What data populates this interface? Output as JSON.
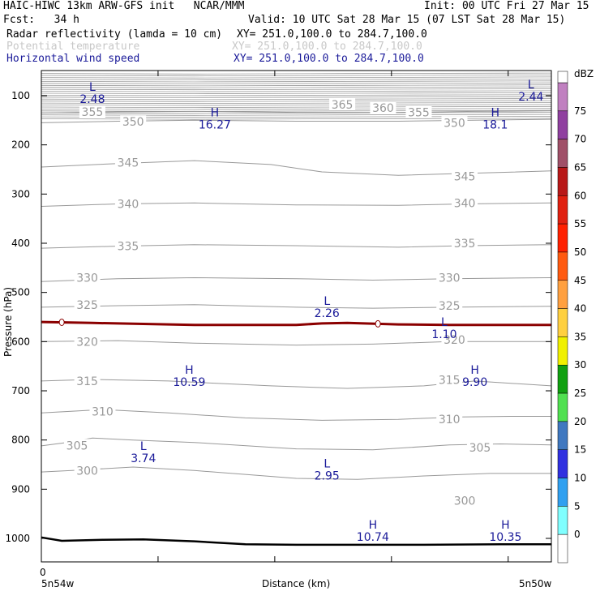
{
  "header": {
    "line1_left": "HAIC-HIWC 13km ARW-GFS init   NCAR/MMM",
    "line1_right": "Init: 00 UTC Fri 27 Mar 15",
    "line2_left": "Fcst:   34 h",
    "line2_right": "Valid: 10 UTC Sat 28 Mar 15 (07 LST Sat 28 Mar 15)",
    "field1_name": "Radar reflectivity (lamda = 10 cm)",
    "field1_xy": "XY= 251.0,100.0 to 284.7,100.0",
    "field2_name": "Potential temperature",
    "field2_xy": "XY= 251.0,100.0 to 284.7,100.0",
    "field3_name": "Horizontal wind speed",
    "field3_xy": "XY= 251.0,100.0 to 284.7,100.0"
  },
  "colors": {
    "theta_contour": "#999999",
    "wind_label": "#1a1a99",
    "freezing_line": "#8b0000",
    "terrain": "#000000"
  },
  "chart_data": {
    "type": "contour",
    "xlabel": "Distance (km)",
    "ylabel": "Pressure (hPa)",
    "x_start_label": "5n54w",
    "x_end_label": "5n50w",
    "x_zero_label": "0",
    "y_ticks": [
      100,
      200,
      300,
      400,
      500,
      600,
      700,
      800,
      900,
      1000
    ],
    "ylim": [
      50,
      1050
    ],
    "xlim": [
      0,
      1
    ],
    "theta_contours": [
      {
        "value": "300",
        "points": [
          [
            0.0,
            865
          ],
          [
            0.06,
            862
          ],
          [
            0.18,
            855
          ],
          [
            0.3,
            862
          ],
          [
            0.4,
            870
          ],
          [
            0.5,
            878
          ],
          [
            0.62,
            880
          ],
          [
            0.75,
            873
          ],
          [
            0.88,
            868
          ],
          [
            1.0,
            868
          ]
        ],
        "labels": [
          [
            0.09,
            862
          ]
        ]
      },
      {
        "value": "300",
        "points": [],
        "labels": [
          [
            0.83,
            923
          ]
        ]
      },
      {
        "value": "305",
        "points": [
          [
            0.0,
            812
          ],
          [
            0.05,
            805
          ],
          [
            0.1,
            796
          ],
          [
            0.18,
            800
          ],
          [
            0.3,
            805
          ],
          [
            0.5,
            818
          ],
          [
            0.65,
            820
          ],
          [
            0.8,
            810
          ],
          [
            0.9,
            808
          ],
          [
            1.0,
            810
          ]
        ],
        "labels": [
          [
            0.07,
            811
          ],
          [
            0.86,
            815
          ]
        ]
      },
      {
        "value": "310",
        "points": [
          [
            0.0,
            745
          ],
          [
            0.12,
            738
          ],
          [
            0.25,
            745
          ],
          [
            0.4,
            755
          ],
          [
            0.55,
            760
          ],
          [
            0.7,
            758
          ],
          [
            0.82,
            753
          ],
          [
            0.92,
            752
          ],
          [
            1.0,
            752
          ]
        ],
        "labels": [
          [
            0.12,
            742
          ],
          [
            0.8,
            758
          ]
        ]
      },
      {
        "value": "315",
        "points": [
          [
            0.0,
            680
          ],
          [
            0.1,
            677
          ],
          [
            0.25,
            680
          ],
          [
            0.45,
            690
          ],
          [
            0.6,
            695
          ],
          [
            0.75,
            690
          ],
          [
            0.85,
            680
          ],
          [
            1.0,
            690
          ]
        ],
        "labels": [
          [
            0.09,
            680
          ],
          [
            0.8,
            678
          ]
        ]
      },
      {
        "value": "320",
        "points": [
          [
            0.0,
            600
          ],
          [
            0.15,
            598
          ],
          [
            0.3,
            603
          ],
          [
            0.5,
            607
          ],
          [
            0.65,
            605
          ],
          [
            0.8,
            600
          ],
          [
            1.0,
            600
          ]
        ],
        "labels": [
          [
            0.09,
            600
          ],
          [
            0.81,
            596
          ]
        ]
      },
      {
        "value": "325",
        "points": [
          [
            0.0,
            530
          ],
          [
            0.15,
            527
          ],
          [
            0.3,
            525
          ],
          [
            0.5,
            530
          ],
          [
            0.65,
            532
          ],
          [
            0.8,
            530
          ],
          [
            1.0,
            528
          ]
        ],
        "labels": [
          [
            0.09,
            525
          ],
          [
            0.8,
            527
          ]
        ]
      },
      {
        "value": "330",
        "points": [
          [
            0.0,
            478
          ],
          [
            0.15,
            472
          ],
          [
            0.3,
            470
          ],
          [
            0.5,
            472
          ],
          [
            0.65,
            475
          ],
          [
            0.8,
            472
          ],
          [
            1.0,
            470
          ]
        ],
        "labels": [
          [
            0.09,
            470
          ],
          [
            0.8,
            470
          ]
        ]
      },
      {
        "value": "335",
        "points": [
          [
            0.0,
            410
          ],
          [
            0.15,
            406
          ],
          [
            0.3,
            403
          ],
          [
            0.5,
            405
          ],
          [
            0.7,
            408
          ],
          [
            0.83,
            405
          ],
          [
            1.0,
            403
          ]
        ],
        "labels": [
          [
            0.17,
            406
          ],
          [
            0.83,
            400
          ]
        ]
      },
      {
        "value": "340",
        "points": [
          [
            0.0,
            325
          ],
          [
            0.15,
            320
          ],
          [
            0.3,
            318
          ],
          [
            0.5,
            322
          ],
          [
            0.7,
            323
          ],
          [
            0.83,
            320
          ],
          [
            1.0,
            318
          ]
        ],
        "labels": [
          [
            0.17,
            320
          ],
          [
            0.83,
            318
          ]
        ]
      },
      {
        "value": "345",
        "points": [
          [
            0.0,
            245
          ],
          [
            0.15,
            238
          ],
          [
            0.3,
            232
          ],
          [
            0.45,
            240
          ],
          [
            0.55,
            255
          ],
          [
            0.7,
            262
          ],
          [
            0.83,
            258
          ],
          [
            1.0,
            253
          ]
        ],
        "labels": [
          [
            0.17,
            236
          ],
          [
            0.83,
            264
          ]
        ]
      },
      {
        "value": "350",
        "points": [
          [
            0.0,
            155
          ],
          [
            0.15,
            152
          ],
          [
            0.3,
            150
          ],
          [
            0.5,
            152
          ],
          [
            0.7,
            152
          ],
          [
            0.85,
            150
          ],
          [
            1.0,
            148
          ]
        ],
        "labels": [
          [
            0.18,
            153
          ],
          [
            0.81,
            155
          ]
        ]
      },
      {
        "value": "355",
        "points": [
          [
            0.0,
            135
          ],
          [
            0.15,
            133
          ],
          [
            0.3,
            132
          ],
          [
            0.5,
            134
          ],
          [
            0.7,
            134
          ],
          [
            0.85,
            132
          ],
          [
            1.0,
            131
          ]
        ],
        "labels": [
          [
            0.1,
            133
          ],
          [
            0.74,
            134
          ]
        ]
      },
      {
        "value": "360",
        "points": [],
        "labels": [
          [
            0.67,
            125
          ]
        ]
      },
      {
        "value": "365",
        "points": [],
        "labels": [
          [
            0.59,
            118
          ]
        ]
      }
    ],
    "wind_extrema": [
      {
        "type": "L",
        "value": "2.48",
        "x": 0.1,
        "y": 90
      },
      {
        "type": "L",
        "value": "2.44",
        "x": 0.96,
        "y": 85
      },
      {
        "type": "H",
        "value": "16.27",
        "x": 0.34,
        "y": 142
      },
      {
        "type": "H",
        "value": "18.1",
        "x": 0.89,
        "y": 142
      },
      {
        "type": "L",
        "value": "2.26",
        "x": 0.56,
        "y": 525
      },
      {
        "type": "L",
        "value": "1.10",
        "x": 0.79,
        "y": 568
      },
      {
        "type": "H",
        "value": "10.59",
        "x": 0.29,
        "y": 665
      },
      {
        "type": "H",
        "value": "9.90",
        "x": 0.85,
        "y": 665
      },
      {
        "type": "L",
        "value": "3.74",
        "x": 0.2,
        "y": 820
      },
      {
        "type": "L",
        "value": "2.95",
        "x": 0.56,
        "y": 856
      },
      {
        "type": "H",
        "value": "10.74",
        "x": 0.65,
        "y": 980
      },
      {
        "type": "H",
        "value": "10.35",
        "x": 0.91,
        "y": 980
      }
    ],
    "freezing_level": [
      [
        0.0,
        560
      ],
      [
        0.1,
        562
      ],
      [
        0.2,
        564
      ],
      [
        0.3,
        566
      ],
      [
        0.4,
        566
      ],
      [
        0.5,
        566
      ],
      [
        0.55,
        563
      ],
      [
        0.6,
        562
      ],
      [
        0.7,
        565
      ],
      [
        0.8,
        566
      ],
      [
        0.9,
        566
      ],
      [
        1.0,
        566
      ]
    ],
    "freezing_markers": [
      0.04,
      0.66
    ],
    "terrain": [
      [
        0.0,
        998
      ],
      [
        0.04,
        1005
      ],
      [
        0.12,
        1003
      ],
      [
        0.2,
        1002
      ],
      [
        0.3,
        1006
      ],
      [
        0.4,
        1012
      ],
      [
        0.5,
        1013
      ],
      [
        0.6,
        1013
      ],
      [
        0.75,
        1013
      ],
      [
        0.9,
        1012
      ],
      [
        1.0,
        1012
      ]
    ],
    "colorbar": {
      "unit": "dBZ",
      "levels": [
        75,
        70,
        65,
        60,
        55,
        50,
        45,
        40,
        35,
        30,
        25,
        20,
        15,
        10,
        5,
        0
      ],
      "colors": [
        "#c080c0",
        "#9040a0",
        "#a05068",
        "#b81818",
        "#e02010",
        "#ff2000",
        "#ff5a10",
        "#ffa040",
        "#ffd040",
        "#f0f000",
        "#10a010",
        "#50e050",
        "#4078c0",
        "#3030e0",
        "#30a0f0",
        "#80ffff",
        "#ffffff"
      ]
    }
  }
}
